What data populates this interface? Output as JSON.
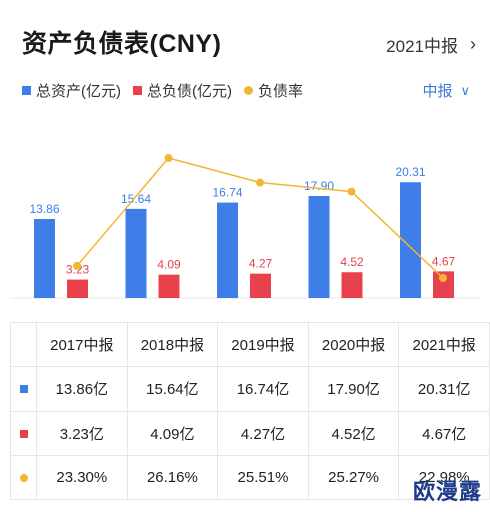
{
  "header": {
    "title": "资产负债表(CNY)",
    "period": "2021中报"
  },
  "legend": {
    "total_assets": "总资产(亿元)",
    "total_liabilities": "总负债(亿元)",
    "debt_ratio": "负债率"
  },
  "half_selector": "中报",
  "colors": {
    "assets": "#3f7ee8",
    "liabilities": "#e8414b",
    "ratio": "#f0b732",
    "accent": "#3b7bd8"
  },
  "icons": {
    "period_chevron": "chevron-right-icon",
    "half_chevron": "chevron-down-icon"
  },
  "chart_data": {
    "type": "bar",
    "categories": [
      "2017中报",
      "2018中报",
      "2019中报",
      "2020中报",
      "2021中报"
    ],
    "series": [
      {
        "name": "总资产(亿元)",
        "values": [
          13.86,
          15.64,
          16.74,
          17.9,
          20.31
        ],
        "labels": [
          "13.86",
          "15.64",
          "16.74",
          "17.90",
          "20.31"
        ]
      },
      {
        "name": "总负债(亿元)",
        "values": [
          3.23,
          4.09,
          4.27,
          4.52,
          4.67
        ],
        "labels": [
          "3.23",
          "4.09",
          "4.27",
          "4.52",
          "4.67"
        ]
      },
      {
        "name": "负债率",
        "type": "line",
        "values": [
          23.3,
          26.16,
          25.51,
          25.27,
          22.98
        ]
      }
    ]
  },
  "table": {
    "headers": [
      "2017中报",
      "2018中报",
      "2019中报",
      "2020中报",
      "2021中报"
    ],
    "rows": [
      {
        "marker": "assets",
        "cells": [
          "13.86亿",
          "15.64亿",
          "16.74亿",
          "17.90亿",
          "20.31亿"
        ]
      },
      {
        "marker": "liabilities",
        "cells": [
          "3.23亿",
          "4.09亿",
          "4.27亿",
          "4.52亿",
          "4.67亿"
        ]
      },
      {
        "marker": "ratio",
        "cells": [
          "23.30%",
          "26.16%",
          "25.51%",
          "25.27%",
          "22.98%"
        ]
      }
    ]
  },
  "watermark": "欧漫露"
}
